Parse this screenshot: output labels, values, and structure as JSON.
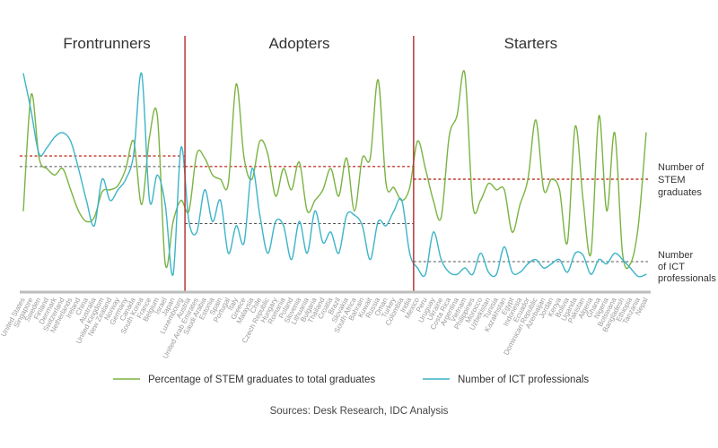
{
  "chart_data": {
    "type": "line",
    "groups": [
      {
        "name": "Frontrunners",
        "start": 0,
        "end": 20
      },
      {
        "name": "Adopters",
        "start": 21,
        "end": 49
      },
      {
        "name": "Starters",
        "start": 50,
        "end": 79
      }
    ],
    "categories": [
      "United States",
      "Singapore",
      "Sweden",
      "Finland",
      "Denmark",
      "Switzerland",
      "Netherlands",
      "Ireland",
      "China",
      "Australia",
      "United Kingdom",
      "New Zealand",
      "Norway",
      "Germany",
      "Canada",
      "South Korea",
      "France",
      "Belgium",
      "Israel",
      "Japan",
      "Luxembourg",
      "Austria",
      "United Arab Emirates",
      "Saudi Arabia",
      "Estonia",
      "Spain",
      "Portugal",
      "Italy",
      "Greece",
      "Malaysia",
      "Chile",
      "Czech Republic",
      "Hungary",
      "Romania",
      "Poland",
      "Slovenia",
      "Lithuania",
      "Bulgaria",
      "Thailand",
      "Croatia",
      "Brazil",
      "Slovakia",
      "South Africa",
      "Bahrain",
      "Kuwait",
      "Russia",
      "Oman",
      "Turkey",
      "Colombia",
      "India",
      "Mexico",
      "Peru",
      "Uruguay",
      "Ukraine",
      "Costa Rica",
      "Argentina",
      "Vietnam",
      "Philippines",
      "Morocco",
      "Uzbekistan",
      "Tunisia",
      "Kazakhstan",
      "Egypt",
      "Indonesia",
      "Ecuador",
      "Dominican Republic",
      "Azerbaijan",
      "Jordan",
      "Kenya",
      "Bolivia",
      "Uganda",
      "Pakistan",
      "Algeria",
      "Ghana",
      "Nigeria",
      "Botswana",
      "Bangladesh",
      "Ethiopia",
      "Tanzania",
      "Nepal"
    ],
    "series": [
      {
        "name": "Percentage of STEM graduates to total graduates",
        "color": "#7bb342",
        "values": [
          0.35,
          0.9,
          0.6,
          0.55,
          0.52,
          0.55,
          0.45,
          0.35,
          0.3,
          0.32,
          0.44,
          0.45,
          0.47,
          0.55,
          0.68,
          0.38,
          0.7,
          0.8,
          0.1,
          0.3,
          0.4,
          0.35,
          0.62,
          0.6,
          0.52,
          0.5,
          0.48,
          0.95,
          0.6,
          0.5,
          0.68,
          0.62,
          0.42,
          0.55,
          0.45,
          0.58,
          0.35,
          0.4,
          0.45,
          0.55,
          0.42,
          0.6,
          0.35,
          0.6,
          0.6,
          0.97,
          0.48,
          0.46,
          0.4,
          0.46,
          0.68,
          0.55,
          0.4,
          0.32,
          0.7,
          0.8,
          1.0,
          0.38,
          0.4,
          0.48,
          0.45,
          0.45,
          0.25,
          0.38,
          0.5,
          0.78,
          0.45,
          0.5,
          0.45,
          0.2,
          0.75,
          0.4,
          0.15,
          0.8,
          0.35,
          0.72,
          0.15,
          0.1,
          0.28,
          0.72
        ],
        "reference_value": 0.62,
        "reference_label": "Number of STEM graduates"
      },
      {
        "name": "Number of ICT professionals",
        "color": "#3cb4c8",
        "values": [
          1.0,
          0.82,
          0.62,
          0.65,
          0.7,
          0.72,
          0.68,
          0.55,
          0.4,
          0.28,
          0.5,
          0.4,
          0.45,
          0.5,
          0.62,
          1.0,
          0.4,
          0.52,
          0.38,
          0.05,
          0.65,
          0.3,
          0.25,
          0.45,
          0.3,
          0.4,
          0.15,
          0.28,
          0.2,
          0.55,
          0.33,
          0.15,
          0.3,
          0.28,
          0.12,
          0.3,
          0.15,
          0.35,
          0.2,
          0.25,
          0.15,
          0.33,
          0.33,
          0.28,
          0.12,
          0.3,
          0.28,
          0.35,
          0.4,
          0.15,
          0.08,
          0.05,
          0.25,
          0.12,
          0.06,
          0.05,
          0.08,
          0.05,
          0.15,
          0.06,
          0.05,
          0.18,
          0.06,
          0.06,
          0.1,
          0.12,
          0.08,
          0.1,
          0.12,
          0.06,
          0.15,
          0.14,
          0.05,
          0.12,
          0.1,
          0.15,
          0.12,
          0.08,
          0.04,
          0.05
        ],
        "reference_value": 0.3,
        "reference_label": "Number of ICT professionals"
      }
    ],
    "source": "Sources: Desk Research, IDC Analysis",
    "grid": false,
    "legend_position": "bottom"
  },
  "colors": {
    "stem": "#7bb342",
    "ict": "#3cb4c8",
    "divider": "#b32a2a",
    "stem_ref": "#c0392b",
    "ict_ref": "#555555",
    "axis": "#bdbdbd"
  }
}
